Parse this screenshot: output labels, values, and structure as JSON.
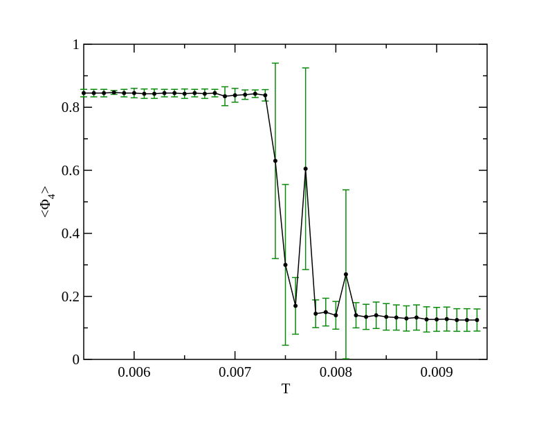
{
  "chart_data": {
    "type": "line",
    "xlabel": "T",
    "ylabel": [
      "<Φ",
      "4",
      ">"
    ],
    "x": [
      0.0055,
      0.0056,
      0.0057,
      0.0058,
      0.0059,
      0.006,
      0.0061,
      0.0062,
      0.0063,
      0.0064,
      0.0065,
      0.0066,
      0.0067,
      0.0068,
      0.0069,
      0.007,
      0.0071,
      0.0072,
      0.0073,
      0.0074,
      0.0075,
      0.0076,
      0.0077,
      0.0078,
      0.0079,
      0.008,
      0.0081,
      0.0082,
      0.0083,
      0.0084,
      0.0085,
      0.0086,
      0.0087,
      0.0088,
      0.0089,
      0.009,
      0.0091,
      0.0092,
      0.0093,
      0.0094
    ],
    "series": [
      {
        "color": "#000000",
        "error_color": "#0a8a0a",
        "values": [
          0.845,
          0.845,
          0.845,
          0.847,
          0.845,
          0.845,
          0.843,
          0.843,
          0.845,
          0.845,
          0.843,
          0.845,
          0.843,
          0.845,
          0.835,
          0.838,
          0.84,
          0.843,
          0.838,
          0.63,
          0.3,
          0.17,
          0.605,
          0.145,
          0.15,
          0.14,
          0.27,
          0.14,
          0.135,
          0.14,
          0.135,
          0.133,
          0.13,
          0.133,
          0.127,
          0.127,
          0.128,
          0.125,
          0.125,
          0.125
        ],
        "errors": [
          0.012,
          0.012,
          0.012,
          0.006,
          0.012,
          0.015,
          0.015,
          0.015,
          0.012,
          0.012,
          0.015,
          0.012,
          0.015,
          0.012,
          0.03,
          0.022,
          0.015,
          0.012,
          0.018,
          0.31,
          0.255,
          0.09,
          0.32,
          0.044,
          0.044,
          0.044,
          0.268,
          0.04,
          0.04,
          0.042,
          0.042,
          0.04,
          0.04,
          0.04,
          0.04,
          0.038,
          0.038,
          0.036,
          0.036,
          0.035
        ]
      }
    ],
    "xlim": [
      0.0055,
      0.0095
    ],
    "ylim": [
      0,
      1
    ],
    "xticks": [
      0.006,
      0.007,
      0.008,
      0.009
    ],
    "yticks": [
      0,
      0.2,
      0.4,
      0.6,
      0.8,
      1
    ],
    "xminorticks": [
      0.0065,
      0.0075,
      0.0085
    ],
    "yminorticks": [
      0.1,
      0.3,
      0.5,
      0.7,
      0.9
    ]
  }
}
